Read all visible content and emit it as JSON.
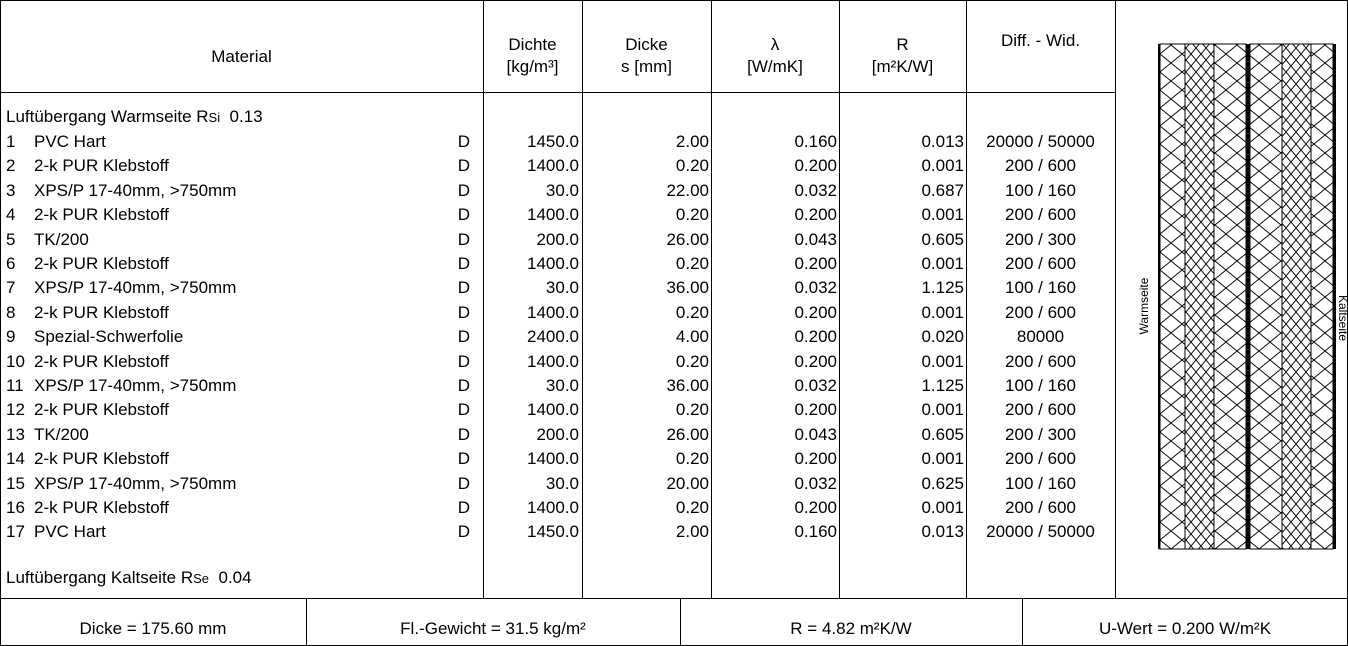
{
  "header": {
    "material": "Material",
    "dichte": [
      "Dichte",
      "[kg/m³]"
    ],
    "dicke": [
      "Dicke",
      "s [mm]"
    ],
    "lambda": [
      "λ",
      "[W/mK]"
    ],
    "r": [
      "R",
      "[m²K/W]"
    ],
    "diff": "Diff. - Wid."
  },
  "warm_side": {
    "label": "Luftübergang Warmseite R",
    "sub": "Si",
    "value": "0.13"
  },
  "cold_side": {
    "label": "Luftübergang Kaltseite R",
    "sub": "Se",
    "value": "0.04"
  },
  "layers": [
    {
      "nr": "1",
      "name": "PVC Hart",
      "flag": "D",
      "dichte": "1450.0",
      "dicke": "2.00",
      "lambda": "0.160",
      "r": "0.013",
      "diff": "20000 / 50000"
    },
    {
      "nr": "2",
      "name": "2-k PUR Klebstoff",
      "flag": "D",
      "dichte": "1400.0",
      "dicke": "0.20",
      "lambda": "0.200",
      "r": "0.001",
      "diff": "200 / 600"
    },
    {
      "nr": "3",
      "name": "XPS/P 17-40mm, >750mm",
      "flag": "D",
      "dichte": "30.0",
      "dicke": "22.00",
      "lambda": "0.032",
      "r": "0.687",
      "diff": "100 / 160"
    },
    {
      "nr": "4",
      "name": "2-k PUR Klebstoff",
      "flag": "D",
      "dichte": "1400.0",
      "dicke": "0.20",
      "lambda": "0.200",
      "r": "0.001",
      "diff": "200 / 600"
    },
    {
      "nr": "5",
      "name": "TK/200",
      "flag": "D",
      "dichte": "200.0",
      "dicke": "26.00",
      "lambda": "0.043",
      "r": "0.605",
      "diff": "200 / 300"
    },
    {
      "nr": "6",
      "name": "2-k PUR Klebstoff",
      "flag": "D",
      "dichte": "1400.0",
      "dicke": "0.20",
      "lambda": "0.200",
      "r": "0.001",
      "diff": "200 / 600"
    },
    {
      "nr": "7",
      "name": "XPS/P 17-40mm, >750mm",
      "flag": "D",
      "dichte": "30.0",
      "dicke": "36.00",
      "lambda": "0.032",
      "r": "1.125",
      "diff": "100 / 160"
    },
    {
      "nr": "8",
      "name": "2-k PUR Klebstoff",
      "flag": "D",
      "dichte": "1400.0",
      "dicke": "0.20",
      "lambda": "0.200",
      "r": "0.001",
      "diff": "200 / 600"
    },
    {
      "nr": "9",
      "name": "Spezial-Schwerfolie",
      "flag": "D",
      "dichte": "2400.0",
      "dicke": "4.00",
      "lambda": "0.200",
      "r": "0.020",
      "diff": "80000"
    },
    {
      "nr": "10",
      "name": "2-k PUR Klebstoff",
      "flag": "D",
      "dichte": "1400.0",
      "dicke": "0.20",
      "lambda": "0.200",
      "r": "0.001",
      "diff": "200 / 600"
    },
    {
      "nr": "11",
      "name": "XPS/P 17-40mm, >750mm",
      "flag": "D",
      "dichte": "30.0",
      "dicke": "36.00",
      "lambda": "0.032",
      "r": "1.125",
      "diff": "100 / 160"
    },
    {
      "nr": "12",
      "name": "2-k PUR Klebstoff",
      "flag": "D",
      "dichte": "1400.0",
      "dicke": "0.20",
      "lambda": "0.200",
      "r": "0.001",
      "diff": "200 / 600"
    },
    {
      "nr": "13",
      "name": "TK/200",
      "flag": "D",
      "dichte": "200.0",
      "dicke": "26.00",
      "lambda": "0.043",
      "r": "0.605",
      "diff": "200 / 300"
    },
    {
      "nr": "14",
      "name": "2-k PUR Klebstoff",
      "flag": "D",
      "dichte": "1400.0",
      "dicke": "0.20",
      "lambda": "0.200",
      "r": "0.001",
      "diff": "200 / 600"
    },
    {
      "nr": "15",
      "name": "XPS/P 17-40mm, >750mm",
      "flag": "D",
      "dichte": "30.0",
      "dicke": "20.00",
      "lambda": "0.032",
      "r": "0.625",
      "diff": "100 / 160"
    },
    {
      "nr": "16",
      "name": "2-k PUR Klebstoff",
      "flag": "D",
      "dichte": "1400.0",
      "dicke": "0.20",
      "lambda": "0.200",
      "r": "0.001",
      "diff": "200 / 600"
    },
    {
      "nr": "17",
      "name": "PVC Hart",
      "flag": "D",
      "dichte": "1450.0",
      "dicke": "2.00",
      "lambda": "0.160",
      "r": "0.013",
      "diff": "20000 / 50000"
    }
  ],
  "diagram": {
    "warm_label": "Warmseite",
    "cold_label": "Kaltseite"
  },
  "footer": {
    "dicke": "Dicke = 175.60 mm",
    "gewicht": "Fl.-Gewicht = 31.5 kg/m²",
    "r": "R = 4.82 m²K/W",
    "u": "U-Wert = 0.200 W/m²K"
  }
}
